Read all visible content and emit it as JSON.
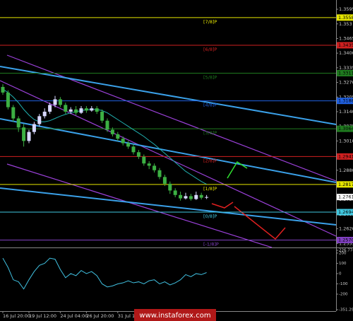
{
  "chart_data": {
    "type": "candlestick",
    "categories": [
      "16 Jul 20:00",
      null,
      null,
      null,
      null,
      "19 Jul 12:00",
      null,
      null,
      null,
      null,
      null,
      "24 Jul 04:00",
      null,
      null,
      null,
      null,
      "26 Jul 20:00",
      null,
      null,
      null,
      null,
      null,
      "31 Jul 12:00",
      null,
      null,
      null,
      null,
      null,
      null,
      null,
      null,
      null,
      null,
      null,
      null,
      null,
      null,
      null,
      null,
      null
    ],
    "open": [
      1.325,
      1.3225,
      1.316,
      1.311,
      1.307,
      1.301,
      1.305,
      1.3085,
      1.312,
      1.314,
      1.317,
      1.3195,
      1.317,
      1.314,
      1.315,
      1.3135,
      1.3155,
      1.3145,
      1.3155,
      1.314,
      1.31,
      1.306,
      1.304,
      1.302,
      1.3,
      1.2985,
      1.296,
      1.294,
      1.291,
      1.29,
      1.288,
      1.285,
      1.282,
      1.279,
      1.277,
      1.2755,
      1.2765,
      1.2752,
      1.277,
      1.2758
    ],
    "high": [
      1.3262,
      1.3235,
      1.317,
      1.312,
      1.3085,
      1.306,
      1.3095,
      1.313,
      1.3155,
      1.318,
      1.321,
      1.3205,
      1.318,
      1.316,
      1.3165,
      1.3165,
      1.3165,
      1.3165,
      1.3165,
      1.315,
      1.311,
      1.307,
      1.305,
      1.303,
      1.301,
      1.2995,
      1.297,
      1.295,
      1.292,
      1.291,
      1.289,
      1.286,
      1.283,
      1.28,
      1.2785,
      1.278,
      1.2775,
      1.2785,
      1.278,
      1.277
    ],
    "low": [
      1.3215,
      1.315,
      1.3095,
      1.305,
      1.2985,
      1.3,
      1.304,
      1.3075,
      1.311,
      1.313,
      1.316,
      1.316,
      1.313,
      1.313,
      1.3125,
      1.313,
      1.3135,
      1.314,
      1.313,
      1.309,
      1.305,
      1.303,
      1.301,
      1.299,
      1.2975,
      1.295,
      1.293,
      1.29,
      1.2885,
      1.287,
      1.284,
      1.281,
      1.2775,
      1.276,
      1.2745,
      1.275,
      1.2745,
      1.2748,
      1.275,
      1.2752
    ],
    "close": [
      1.3225,
      1.316,
      1.311,
      1.307,
      1.301,
      1.305,
      1.3085,
      1.312,
      1.314,
      1.317,
      1.3195,
      1.317,
      1.314,
      1.315,
      1.3135,
      1.3155,
      1.3145,
      1.3155,
      1.314,
      1.31,
      1.306,
      1.304,
      1.302,
      1.3,
      1.2985,
      1.296,
      1.294,
      1.291,
      1.29,
      1.288,
      1.285,
      1.282,
      1.279,
      1.277,
      1.2755,
      1.2765,
      1.2752,
      1.277,
      1.2758,
      1.2761
    ],
    "bull_color": "#d8d8ff",
    "bear_color": "#3cb043",
    "ylim": [
      1.2537,
      1.3636
    ],
    "yticks": [
      1.3595,
      1.353,
      1.3465,
      {
        "value": 1.34,
        "label": "1.3400"
      },
      1.3335,
      {
        "value": 1.327,
        "label": "1.3270"
      },
      1.3205,
      {
        "value": 1.314,
        "label": "1.3140"
      },
      1.3075,
      {
        "value": 1.301,
        "label": "1.3010"
      },
      1.2945,
      {
        "value": 1.288,
        "label": "1.2880"
      },
      1.2815,
      {
        "value": 1.275,
        "label": "1.2750"
      },
      1.2685,
      {
        "value": 1.262,
        "label": "1.2620"
      },
      1.2555
    ],
    "levels": [
      {
        "name": "[7/8]P",
        "value": 1.3558,
        "color": "#e6e600"
      },
      {
        "name": "[6/8]P",
        "value": 1.3435,
        "color": "#d02020"
      },
      {
        "name": "[5/8]P",
        "value": 1.3311,
        "color": "#1f7a1f"
      },
      {
        "name": "[4/8]P",
        "value": 1.3188,
        "color": "#2060e0"
      },
      {
        "name": "[3/8]P",
        "value": 1.3064,
        "color": "#1f7a1f"
      },
      {
        "name": "[2/8]P",
        "value": 1.2941,
        "color": "#d02020"
      },
      {
        "name": "[1/8]P",
        "value": 1.2817,
        "color": "#e6e600"
      },
      {
        "name": "[0/8]P",
        "value": 1.2694,
        "color": "#40c8e0"
      },
      {
        "name": "[-1/8]P",
        "value": {
          "value": 1.257,
          "label": "1.2570"
        },
        "color": "#8040c0"
      }
    ],
    "last_price": 1.2761,
    "moving_average": {
      "color": "#20b0b0",
      "values": [
        1.324,
        1.3225,
        1.3205,
        1.318,
        1.315,
        1.3125,
        1.3105,
        1.3095,
        1.3095,
        1.31,
        1.311,
        1.312,
        1.3128,
        1.3135,
        1.314,
        1.3145,
        1.3148,
        1.315,
        1.315,
        1.3145,
        1.3135,
        1.312,
        1.3105,
        1.309,
        1.3075,
        1.306,
        1.3045,
        1.303,
        1.3012,
        1.2995,
        1.2975,
        1.2955,
        1.2935,
        1.2915,
        1.2895,
        1.2875,
        1.286,
        1.2845,
        1.283,
        1.2818
      ]
    },
    "indicator": {
      "type": "line",
      "color": "#40c0e0",
      "values": [
        150,
        60,
        -60,
        -80,
        -150,
        -60,
        20,
        80,
        100,
        150,
        140,
        40,
        -40,
        0,
        -20,
        30,
        0,
        20,
        -20,
        -100,
        -130,
        -120,
        -100,
        -90,
        -70,
        -90,
        -80,
        -100,
        -70,
        -60,
        -100,
        -80,
        -110,
        -90,
        -60,
        -10,
        -30,
        0,
        -10,
        10
      ],
      "ylim": [
        -351.294,
        226.7746
      ],
      "yticks": [
        226.7746,
        200,
        100,
        0,
        -100,
        -200,
        -351.294
      ]
    }
  },
  "watermark": "www.instaforex.com"
}
